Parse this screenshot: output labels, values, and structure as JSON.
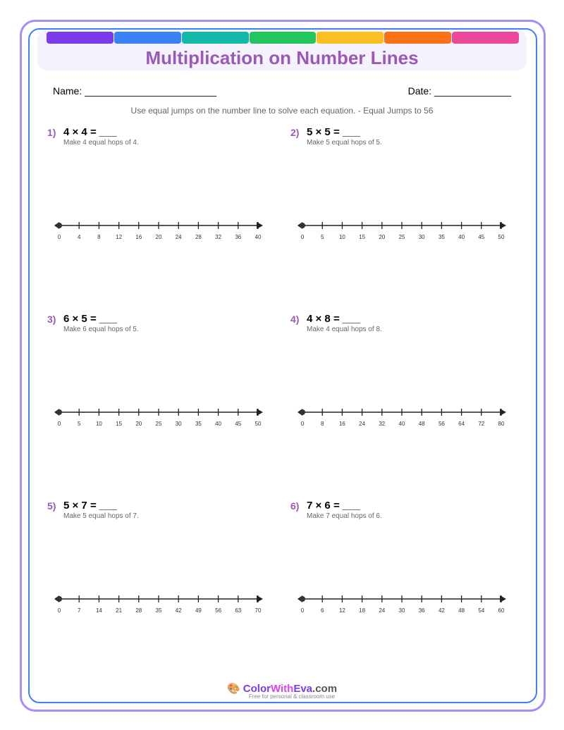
{
  "header": {
    "title": "Multiplication on Number Lines",
    "bar_colors": [
      "#7c3aed",
      "#3b82f6",
      "#14b8a6",
      "#22c55e",
      "#fbbf24",
      "#f97316",
      "#ec4899"
    ]
  },
  "form": {
    "name_label": "Name: ________________________",
    "date_label": "Date: ______________"
  },
  "instructions": "Use equal jumps on the number line to solve each equation. - Equal Jumps to 56",
  "problems": [
    {
      "number": "1)",
      "equation": "4 × 4 = ___",
      "hint": "Make 4 equal hops of 4.",
      "ticks": [
        "0",
        "4",
        "8",
        "12",
        "16",
        "20",
        "24",
        "28",
        "32",
        "36",
        "40"
      ]
    },
    {
      "number": "2)",
      "equation": "5 × 5 = ___",
      "hint": "Make 5 equal hops of 5.",
      "ticks": [
        "0",
        "5",
        "10",
        "15",
        "20",
        "25",
        "30",
        "35",
        "40",
        "45",
        "50"
      ]
    },
    {
      "number": "3)",
      "equation": "6 × 5 = ___",
      "hint": "Make 6 equal hops of 5.",
      "ticks": [
        "0",
        "5",
        "10",
        "15",
        "20",
        "25",
        "30",
        "35",
        "40",
        "45",
        "50"
      ]
    },
    {
      "number": "4)",
      "equation": "4 × 8 = ___",
      "hint": "Make 4 equal hops of 8.",
      "ticks": [
        "0",
        "8",
        "16",
        "24",
        "32",
        "40",
        "48",
        "56",
        "64",
        "72",
        "80"
      ]
    },
    {
      "number": "5)",
      "equation": "5 × 7 = ___",
      "hint": "Make 5 equal hops of 7.",
      "ticks": [
        "0",
        "7",
        "14",
        "21",
        "28",
        "35",
        "42",
        "49",
        "56",
        "63",
        "70"
      ]
    },
    {
      "number": "6)",
      "equation": "7 × 6 = ___",
      "hint": "Make 7 equal hops of 6.",
      "ticks": [
        "0",
        "6",
        "12",
        "18",
        "24",
        "30",
        "36",
        "42",
        "48",
        "54",
        "60"
      ]
    }
  ],
  "footer": {
    "brand_a": "Color",
    "brand_b": "With",
    "brand_c": "Eva",
    "brand_d": ".com",
    "tagline": "Free for personal & classroom use"
  }
}
